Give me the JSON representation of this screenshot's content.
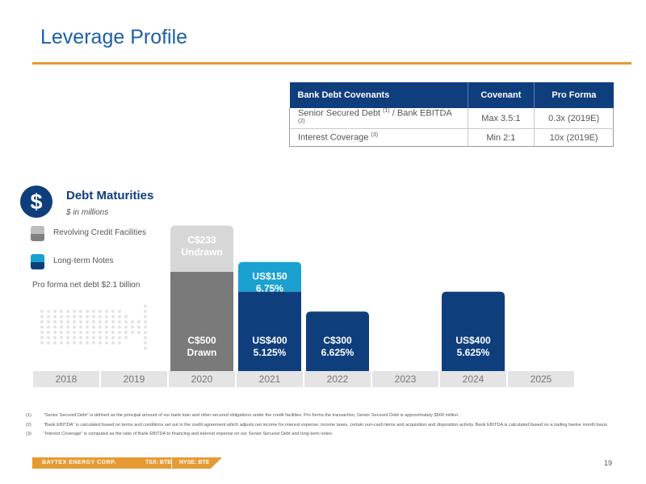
{
  "page": {
    "title": "Leverage Profile",
    "page_number": "19"
  },
  "covenants": {
    "headers": [
      "Bank Debt Covenants",
      "Covenant",
      "Pro Forma"
    ],
    "rows": [
      {
        "label": "Senior Secured Debt ",
        "sup1": "(1)",
        "mid": " / Bank EBITDA ",
        "sup2": "(2)",
        "covenant": "Max 3.5:1",
        "proforma": "0.3x (2019E)"
      },
      {
        "label": "Interest Coverage ",
        "sup1": "(3)",
        "mid": "",
        "sup2": "",
        "covenant": "Min 2:1",
        "proforma": "10x (2019E)"
      }
    ]
  },
  "maturities": {
    "icon": "dollar-icon",
    "symbol": "$",
    "title": "Debt Maturities",
    "subtitle": "$ in millions",
    "legend": [
      {
        "label": "Revolving Credit Facilities",
        "color_top": "#bdbdbd",
        "color_bottom": "#808080"
      },
      {
        "label": "Long-term Notes",
        "color_top": "#1aa1cf",
        "color_bottom": "#0f3e7d"
      }
    ],
    "note": "Pro forma net debt $2.1 billion"
  },
  "chart_data": {
    "type": "bar",
    "title": "Debt Maturities",
    "units": "$ in millions",
    "categories": [
      "2018",
      "2019",
      "2020",
      "2021",
      "2022",
      "2023",
      "2024",
      "2025"
    ],
    "bars": [
      {
        "year": "2020",
        "series": "Revolving Credit Facilities",
        "segments": [
          {
            "label": [
              "C$500",
              "Drawn"
            ],
            "value": 500,
            "color": "#7a7a7a"
          },
          {
            "label": [
              "C$233",
              "Undrawn"
            ],
            "value": 233,
            "color": "#d7d7d7"
          }
        ]
      },
      {
        "year": "2021",
        "series": "Long-term Notes",
        "segments": [
          {
            "label": [
              "US$400",
              "5.125%"
            ],
            "value": 400,
            "color": "#0f3e7d"
          },
          {
            "label": [
              "US$150",
              "6.75%"
            ],
            "value": 150,
            "color": "#1aa1cf"
          }
        ]
      },
      {
        "year": "2022",
        "series": "Long-term Notes",
        "segments": [
          {
            "label": [
              "C$300",
              "6.625%"
            ],
            "value": 300,
            "color": "#0f3e7d"
          }
        ]
      },
      {
        "year": "2024",
        "series": "Long-term Notes",
        "segments": [
          {
            "label": [
              "US$400",
              "5.625%"
            ],
            "value": 400,
            "color": "#0f3e7d"
          }
        ]
      }
    ]
  },
  "footnotes": [
    {
      "num": "(1)",
      "text": "“Senior Secured Debt” is defined as the principal amount of our bank loan and other secured obligations under the credit facilities. Pro forma the transaction, Senior Secured Debt is approximately $500 million."
    },
    {
      "num": "(2)",
      "text": "“Bank EBITDA” is calculated based on terms and conditions set out in the credit agreement which adjusts net income for interest expense, income taxes, certain non-cash items and acquisition and disposition activity. Bank EBITDA is calculated based on a trailing twelve month basis."
    },
    {
      "num": "(3)",
      "text": "“Interest Coverage” is computed as the ratio of Bank EBITDA to financing and interest expense on our Senior Secured Debt and long-term notes."
    }
  ],
  "footer": {
    "company": "BAYTEX ENERGY CORP.",
    "tsx": "TSX: BTE",
    "nyse": "NYSE: BTE"
  }
}
